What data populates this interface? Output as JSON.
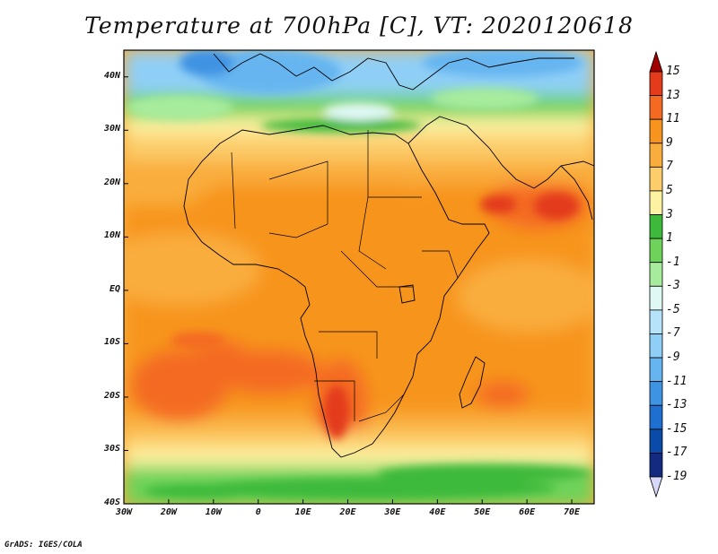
{
  "title": "Temperature at 700hPa [C], VT: 2020120618",
  "credit": "GrADS: IGES/COLA",
  "map": {
    "projection": "lat-lon",
    "lon_range": [
      -30,
      75
    ],
    "lat_range": [
      -40,
      45
    ],
    "lat_labels": [
      "40N",
      "30N",
      "20N",
      "10N",
      "EQ",
      "10S",
      "20S",
      "30S",
      "40S"
    ],
    "lat_values": [
      40,
      30,
      20,
      10,
      0,
      -10,
      -20,
      -30,
      -40
    ],
    "lon_labels": [
      "30W",
      "20W",
      "10W",
      "0",
      "10E",
      "20E",
      "30E",
      "40E",
      "50E",
      "60E",
      "70E"
    ],
    "lon_values": [
      -30,
      -20,
      -10,
      0,
      10,
      20,
      30,
      40,
      50,
      60,
      70
    ]
  },
  "colorbar": {
    "labels": [
      "15",
      "13",
      "11",
      "9",
      "7",
      "5",
      "3",
      "1",
      "-1",
      "-3",
      "-5",
      "-7",
      "-9",
      "-11",
      "-13",
      "-15",
      "-17",
      "-19"
    ],
    "colors": [
      "#a00000",
      "#e33b1b",
      "#f46a22",
      "#f7941d",
      "#f9ad3c",
      "#fccd6a",
      "#fdf1a2",
      "#3db93b",
      "#6ed35a",
      "#a7ec9d",
      "#dff8f4",
      "#b6e3f9",
      "#8fcff7",
      "#66b5f0",
      "#3f93e3",
      "#1f6fd0",
      "#0a4aa8",
      "#132a80",
      "#d8d8f8"
    ]
  }
}
